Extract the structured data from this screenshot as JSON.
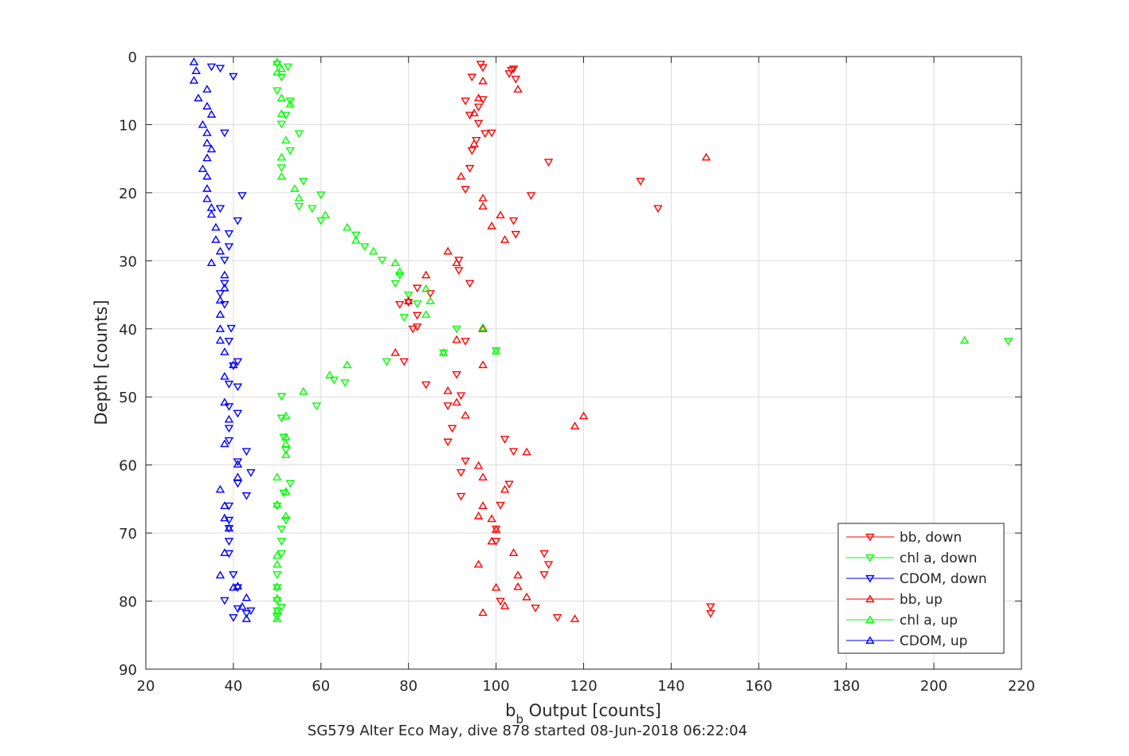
{
  "colors": {
    "bb": "#ff0000",
    "chl": "#00ff00",
    "cdom": "#0000ff",
    "grid": "#dcdcdc",
    "axis": "#262626"
  },
  "chart_data": {
    "type": "scatter",
    "xlabel_main": "b",
    "xlabel_sub": "b",
    "xlabel_rest": " Output [counts]",
    "ylabel": "Depth [counts]",
    "caption": "SG579 Alter Eco May, dive 878 started 08-Jun-2018 06:22:04",
    "xlim": [
      20,
      220
    ],
    "ylim": [
      0,
      90
    ],
    "y_reversed": true,
    "grid": true,
    "legend_position": "bottom-right",
    "x_ticks": [
      "20",
      "40",
      "60",
      "80",
      "100",
      "120",
      "140",
      "160",
      "180",
      "200",
      "220"
    ],
    "y_ticks": [
      "0",
      "10",
      "20",
      "30",
      "40",
      "50",
      "60",
      "70",
      "80",
      "90"
    ],
    "series": [
      {
        "name": "bb, down",
        "key": "bb",
        "marker": "triangle-down",
        "points": [
          [
            96.5,
            1.1
          ],
          [
            97.0,
            1.6
          ],
          [
            103.5,
            2.0
          ],
          [
            104.0,
            1.8
          ],
          [
            94.5,
            3.0
          ],
          [
            103.0,
            2.5
          ],
          [
            104.5,
            3.3
          ],
          [
            97.0,
            6.3
          ],
          [
            93.0,
            6.5
          ],
          [
            96.0,
            7.4
          ],
          [
            94.0,
            8.6
          ],
          [
            96.0,
            9.8
          ],
          [
            99.0,
            11.2
          ],
          [
            97.5,
            11.3
          ],
          [
            95.5,
            12.3
          ],
          [
            94.5,
            13.8
          ],
          [
            112.0,
            15.5
          ],
          [
            94.0,
            16.4
          ],
          [
            133.0,
            18.3
          ],
          [
            93.0,
            19.5
          ],
          [
            108.0,
            20.4
          ],
          [
            137.0,
            22.3
          ],
          [
            104.0,
            24.1
          ],
          [
            104.5,
            26.1
          ],
          [
            91.5,
            29.9
          ],
          [
            91.5,
            31.4
          ],
          [
            94.0,
            33.3
          ],
          [
            82.0,
            34.0
          ],
          [
            85.0,
            34.8
          ],
          [
            80.0,
            36.1
          ],
          [
            78.0,
            36.4
          ],
          [
            82.0,
            38.0
          ],
          [
            82.0,
            39.7
          ],
          [
            81.0,
            40.0
          ],
          [
            93.0,
            41.8
          ],
          [
            79.0,
            44.8
          ],
          [
            84.0,
            48.2
          ],
          [
            91.0,
            46.7
          ],
          [
            92.0,
            49.8
          ],
          [
            89.0,
            51.3
          ],
          [
            90.0,
            54.6
          ],
          [
            89.0,
            56.6
          ],
          [
            102.0,
            56.2
          ],
          [
            104.0,
            58.0
          ],
          [
            93.0,
            59.4
          ],
          [
            92.0,
            61.1
          ],
          [
            103.0,
            62.8
          ],
          [
            92.0,
            64.6
          ],
          [
            101.0,
            65.9
          ],
          [
            100.0,
            69.4
          ],
          [
            100.0,
            71.2
          ],
          [
            111.0,
            73.0
          ],
          [
            112.0,
            74.6
          ],
          [
            111.0,
            76.1
          ],
          [
            101.0,
            80.0
          ],
          [
            109.0,
            81.0
          ],
          [
            114.0,
            82.4
          ],
          [
            149.0,
            81.8
          ],
          [
            149.0,
            80.8
          ]
        ]
      },
      {
        "name": "chl a, down",
        "key": "chl",
        "marker": "triangle-down",
        "points": [
          [
            50.0,
            1.1
          ],
          [
            52.5,
            1.5
          ],
          [
            51.0,
            3.0
          ],
          [
            50.0,
            5.0
          ],
          [
            53.0,
            6.5
          ],
          [
            52.0,
            8.6
          ],
          [
            51.0,
            9.9
          ],
          [
            55.0,
            11.3
          ],
          [
            53.0,
            13.8
          ],
          [
            51.0,
            16.3
          ],
          [
            56.0,
            18.3
          ],
          [
            60.0,
            20.3
          ],
          [
            55.0,
            22.0
          ],
          [
            58.0,
            22.3
          ],
          [
            60.0,
            24.1
          ],
          [
            68.0,
            26.2
          ],
          [
            70.0,
            27.9
          ],
          [
            74.0,
            29.9
          ],
          [
            78.0,
            32.1
          ],
          [
            77.0,
            33.3
          ],
          [
            80.0,
            35.0
          ],
          [
            82.0,
            36.3
          ],
          [
            79.0,
            38.3
          ],
          [
            91.0,
            40.0
          ],
          [
            88.0,
            43.5
          ],
          [
            75.0,
            44.8
          ],
          [
            65.5,
            47.9
          ],
          [
            63.0,
            47.5
          ],
          [
            59.0,
            51.3
          ],
          [
            51.0,
            49.9
          ],
          [
            51.0,
            53.1
          ],
          [
            51.5,
            55.9
          ],
          [
            52.0,
            57.8
          ],
          [
            53.0,
            62.7
          ],
          [
            51.5,
            64.1
          ],
          [
            50.0,
            66.0
          ],
          [
            52.0,
            68.1
          ],
          [
            51.0,
            69.4
          ],
          [
            51.0,
            71.2
          ],
          [
            51.0,
            73.0
          ],
          [
            50.0,
            76.1
          ],
          [
            50.0,
            78.0
          ],
          [
            50.0,
            79.9
          ],
          [
            50.0,
            81.4
          ],
          [
            50.0,
            82.3
          ],
          [
            51.0,
            80.9
          ],
          [
            217.0,
            41.8
          ],
          [
            100.0,
            43.2
          ]
        ]
      },
      {
        "name": "CDOM, down",
        "key": "cdom",
        "marker": "triangle-down",
        "points": [
          [
            35.0,
            1.5
          ],
          [
            37.0,
            1.7
          ],
          [
            40.0,
            2.9
          ],
          [
            38.0,
            11.2
          ],
          [
            42.0,
            20.4
          ],
          [
            37.0,
            22.3
          ],
          [
            41.0,
            24.1
          ],
          [
            39.0,
            26.0
          ],
          [
            39.0,
            27.9
          ],
          [
            38.0,
            29.9
          ],
          [
            38.0,
            33.3
          ],
          [
            37.0,
            34.8
          ],
          [
            38.0,
            36.4
          ],
          [
            39.5,
            39.9
          ],
          [
            39.0,
            41.8
          ],
          [
            41.0,
            44.8
          ],
          [
            40.0,
            45.4
          ],
          [
            39.0,
            48.1
          ],
          [
            41.0,
            48.5
          ],
          [
            39.0,
            51.4
          ],
          [
            41.0,
            52.4
          ],
          [
            39.0,
            54.6
          ],
          [
            39.0,
            56.4
          ],
          [
            43.0,
            58.0
          ],
          [
            41.0,
            59.5
          ],
          [
            44.0,
            61.1
          ],
          [
            41.0,
            62.7
          ],
          [
            43.0,
            64.5
          ],
          [
            39.0,
            66.0
          ],
          [
            39.0,
            68.1
          ],
          [
            39.0,
            69.3
          ],
          [
            39.0,
            71.2
          ],
          [
            39.0,
            73.0
          ],
          [
            40.0,
            76.1
          ],
          [
            41.0,
            78.0
          ],
          [
            38.0,
            79.9
          ],
          [
            41.0,
            81.1
          ],
          [
            40.0,
            82.4
          ],
          [
            44.0,
            81.4
          ],
          [
            43.0,
            81.8
          ]
        ]
      },
      {
        "name": "bb, up",
        "key": "bb",
        "marker": "triangle-up",
        "points": [
          [
            97.0,
            3.6
          ],
          [
            105.0,
            4.8
          ],
          [
            96.0,
            6.1
          ],
          [
            95.0,
            8.3
          ],
          [
            95.0,
            12.8
          ],
          [
            148.0,
            14.8
          ],
          [
            92.0,
            17.6
          ],
          [
            97.0,
            20.8
          ],
          [
            97.0,
            22.0
          ],
          [
            101.0,
            23.3
          ],
          [
            99.0,
            24.9
          ],
          [
            102.0,
            26.9
          ],
          [
            89.0,
            28.6
          ],
          [
            91.0,
            30.3
          ],
          [
            84.0,
            32.1
          ],
          [
            80.0,
            35.9
          ],
          [
            77.0,
            43.5
          ],
          [
            91.0,
            41.6
          ],
          [
            97.0,
            40.0
          ],
          [
            97.0,
            45.3
          ],
          [
            89.0,
            49.1
          ],
          [
            91.0,
            50.8
          ],
          [
            93.0,
            52.7
          ],
          [
            118.0,
            54.3
          ],
          [
            120.0,
            52.8
          ],
          [
            107.0,
            58.1
          ],
          [
            96.0,
            60.1
          ],
          [
            97.0,
            61.8
          ],
          [
            102.0,
            63.6
          ],
          [
            97.0,
            66.0
          ],
          [
            96.0,
            67.5
          ],
          [
            99.0,
            67.9
          ],
          [
            99.0,
            71.2
          ],
          [
            100.0,
            69.5
          ],
          [
            104.0,
            72.9
          ],
          [
            96.0,
            74.6
          ],
          [
            105.0,
            76.2
          ],
          [
            105.0,
            77.9
          ],
          [
            100.0,
            78.0
          ],
          [
            107.0,
            79.4
          ],
          [
            102.0,
            80.7
          ],
          [
            97.0,
            81.7
          ],
          [
            118.0,
            82.6
          ]
        ]
      },
      {
        "name": "chl a, up",
        "key": "chl",
        "marker": "triangle-up",
        "points": [
          [
            50.0,
            0.8
          ],
          [
            51.0,
            1.8
          ],
          [
            50.0,
            2.3
          ],
          [
            51.0,
            6.1
          ],
          [
            53.0,
            7.0
          ],
          [
            51.0,
            8.4
          ],
          [
            52.0,
            12.3
          ],
          [
            51.0,
            14.8
          ],
          [
            51.0,
            17.6
          ],
          [
            54.0,
            19.4
          ],
          [
            55.0,
            20.8
          ],
          [
            61.0,
            23.3
          ],
          [
            66.0,
            25.1
          ],
          [
            68.0,
            27.0
          ],
          [
            72.0,
            28.6
          ],
          [
            77.0,
            30.3
          ],
          [
            78.0,
            31.6
          ],
          [
            84.0,
            34.1
          ],
          [
            85.0,
            35.9
          ],
          [
            84.0,
            37.9
          ],
          [
            97.0,
            39.8
          ],
          [
            100.0,
            43.3
          ],
          [
            88.0,
            43.5
          ],
          [
            207.0,
            41.7
          ],
          [
            66.0,
            45.3
          ],
          [
            62.0,
            46.8
          ],
          [
            56.0,
            49.2
          ],
          [
            52.0,
            52.8
          ],
          [
            52.0,
            55.9
          ],
          [
            52.0,
            56.9
          ],
          [
            52.0,
            58.5
          ],
          [
            50.0,
            61.8
          ],
          [
            52.0,
            63.9
          ],
          [
            50.0,
            65.8
          ],
          [
            52.0,
            67.5
          ],
          [
            50.0,
            73.3
          ],
          [
            50.0,
            74.6
          ],
          [
            50.0,
            77.9
          ],
          [
            50.0,
            79.6
          ],
          [
            50.0,
            81.4
          ],
          [
            50.0,
            82.6
          ]
        ]
      },
      {
        "name": "CDOM, up",
        "key": "cdom",
        "marker": "triangle-up",
        "points": [
          [
            31.0,
            0.8
          ],
          [
            31.5,
            2.1
          ],
          [
            31.0,
            3.5
          ],
          [
            34.0,
            4.8
          ],
          [
            32.0,
            6.1
          ],
          [
            34.0,
            7.3
          ],
          [
            35.0,
            8.5
          ],
          [
            33.0,
            10.0
          ],
          [
            34.0,
            11.2
          ],
          [
            34.0,
            12.7
          ],
          [
            35.0,
            13.6
          ],
          [
            34.0,
            14.9
          ],
          [
            33.0,
            16.5
          ],
          [
            34.0,
            17.6
          ],
          [
            34.0,
            19.4
          ],
          [
            34.0,
            20.9
          ],
          [
            35.0,
            22.2
          ],
          [
            35.0,
            23.2
          ],
          [
            36.0,
            25.1
          ],
          [
            36.0,
            26.9
          ],
          [
            37.0,
            28.6
          ],
          [
            35.0,
            30.3
          ],
          [
            38.0,
            32.1
          ],
          [
            38.0,
            34.0
          ],
          [
            37.0,
            35.8
          ],
          [
            37.0,
            37.9
          ],
          [
            37.0,
            40.0
          ],
          [
            37.0,
            41.7
          ],
          [
            38.0,
            43.4
          ],
          [
            40.0,
            45.3
          ],
          [
            38.0,
            47.0
          ],
          [
            38.0,
            50.8
          ],
          [
            39.0,
            53.3
          ],
          [
            38.0,
            56.9
          ],
          [
            41.0,
            59.9
          ],
          [
            41.0,
            61.8
          ],
          [
            37.0,
            63.6
          ],
          [
            38.0,
            66.0
          ],
          [
            38.0,
            67.8
          ],
          [
            39.0,
            69.3
          ],
          [
            38.0,
            72.9
          ],
          [
            37.0,
            76.2
          ],
          [
            41.0,
            77.8
          ],
          [
            40.0,
            78.0
          ],
          [
            43.0,
            79.5
          ],
          [
            42.0,
            80.8
          ],
          [
            43.0,
            82.6
          ]
        ]
      }
    ]
  }
}
